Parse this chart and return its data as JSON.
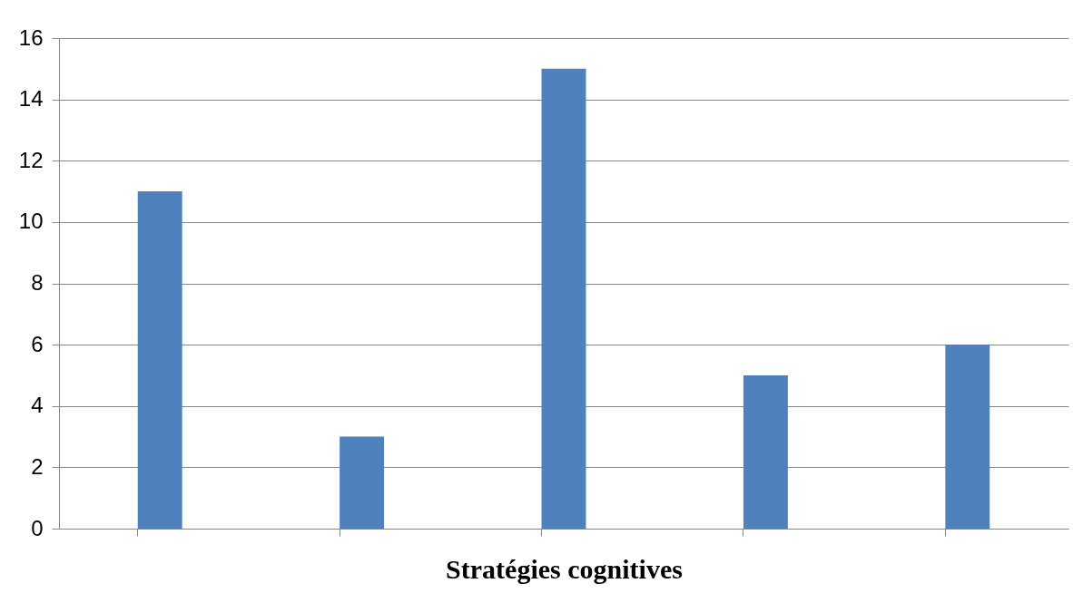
{
  "chart_data": {
    "type": "bar",
    "xlabel": "Stratégies cognitives",
    "categories": [
      null,
      null,
      null,
      null,
      null
    ],
    "values": [
      11,
      3,
      15,
      5,
      6
    ],
    "color": "#4f81bd",
    "ylim": [
      0,
      16
    ],
    "yticks": [
      0,
      2,
      4,
      6,
      8,
      10,
      12,
      14,
      16
    ],
    "grid": "y"
  }
}
